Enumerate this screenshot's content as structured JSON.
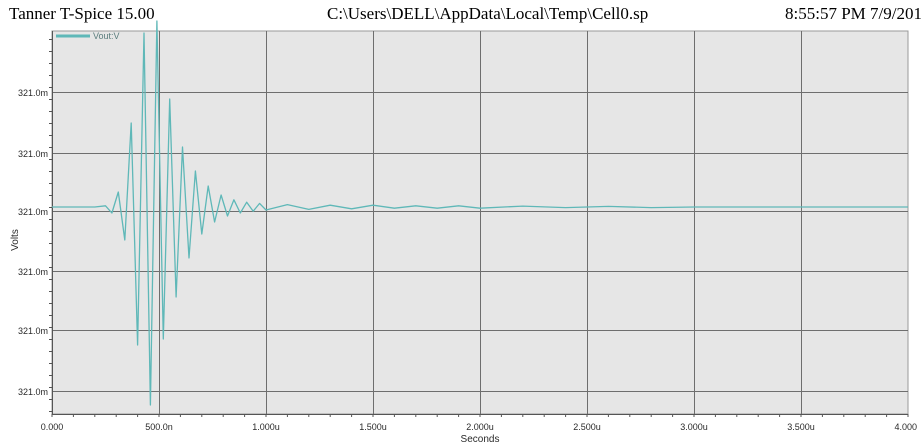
{
  "window": {
    "app_title": "Tanner T-Spice 15.00",
    "file_path": "C:\\Users\\DELL\\AppData\\Local\\Temp\\Cell0.sp",
    "timestamp": "8:55:57 PM 7/9/201"
  },
  "colors": {
    "trace": "#5fb8b8",
    "plot_background": "#e6e6e6",
    "grid": "#6e6e6e"
  },
  "chart_data": {
    "type": "line",
    "title": "",
    "xlabel": "Seconds",
    "ylabel": "Volts",
    "grid": true,
    "legend_position": "top-left",
    "xlim": [
      0,
      4.0
    ],
    "x_unit": "us",
    "x_ticks": [
      0,
      0.5,
      1.0,
      1.5,
      2.0,
      2.5,
      3.0,
      3.5,
      4.0
    ],
    "x_tick_labels": [
      "0.000",
      "500.0n",
      "1.000u",
      "1.500u",
      "2.000u",
      "2.500u",
      "3.000u",
      "3.500u",
      "4.000"
    ],
    "y_tick_labels": [
      "321.0m",
      "321.0m",
      "321.0m",
      "321.0m",
      "321.0m",
      "321.0m"
    ],
    "y_note": "all tick labels read 321.0m; the oscillation is far below label precision, so y values are given as relative deviation from the settled level (positive = upward)",
    "ylim_relative": [
      -3.3,
      3.3
    ],
    "series": [
      {
        "name": "Vout:V",
        "x": [
          0,
          0.2,
          0.25,
          0.28,
          0.31,
          0.34,
          0.37,
          0.4,
          0.43,
          0.46,
          0.49,
          0.52,
          0.55,
          0.58,
          0.61,
          0.64,
          0.67,
          0.7,
          0.73,
          0.76,
          0.79,
          0.82,
          0.85,
          0.88,
          0.91,
          0.94,
          0.97,
          1.0,
          1.1,
          1.2,
          1.3,
          1.4,
          1.5,
          1.6,
          1.7,
          1.8,
          1.9,
          2.0,
          2.2,
          2.4,
          2.6,
          2.8,
          3.0,
          3.5,
          4.0
        ],
        "y": [
          0,
          0,
          0.02,
          -0.1,
          0.25,
          -0.55,
          1.4,
          -2.3,
          2.9,
          -3.3,
          3.1,
          -2.2,
          1.8,
          -1.5,
          1.0,
          -0.85,
          0.6,
          -0.45,
          0.35,
          -0.25,
          0.2,
          -0.15,
          0.12,
          -0.1,
          0.08,
          -0.07,
          0.06,
          -0.05,
          0.04,
          -0.04,
          0.03,
          -0.03,
          0.03,
          -0.02,
          0.02,
          -0.02,
          0.02,
          -0.02,
          0.015,
          -0.01,
          0.01,
          -0.01,
          0,
          0,
          0
        ]
      }
    ]
  }
}
